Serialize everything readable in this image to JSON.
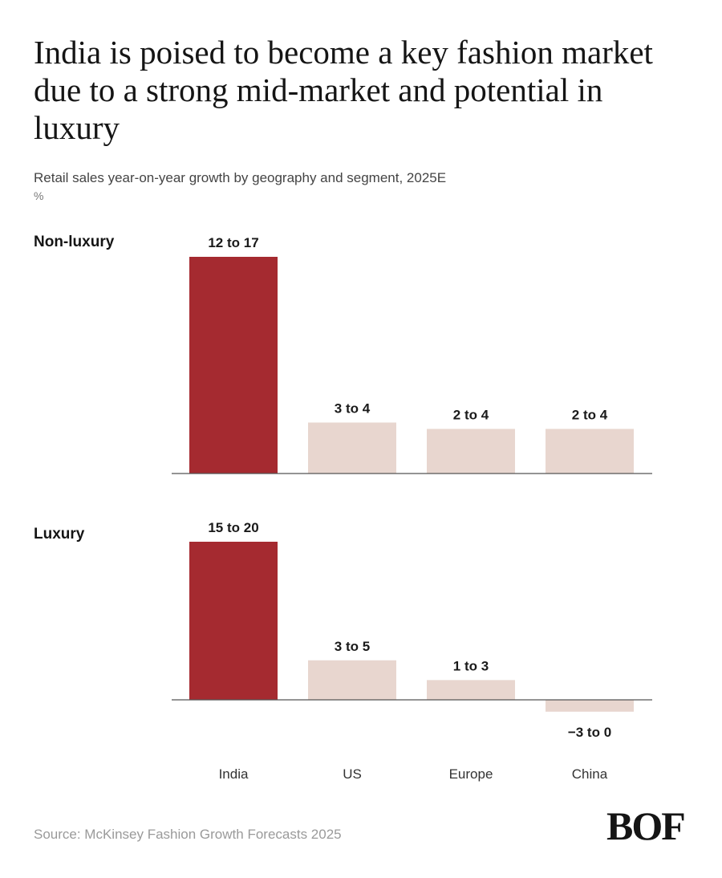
{
  "title": "India is poised to become a key fashion market due to a strong mid-market and potential in luxury",
  "subtitle": "Retail sales year-on-year growth by geography and segment, 2025E",
  "unit": "%",
  "source": "Source: McKinsey Fashion Growth Forecasts 2025",
  "logo": "BOF",
  "colors": {
    "highlight": "#a52a30",
    "muted": "#e8d6cf",
    "axis": "#555555"
  },
  "chart_data": [
    {
      "type": "bar",
      "title": "Non-luxury",
      "categories": [
        "India",
        "US",
        "Europe",
        "China"
      ],
      "ranges": [
        [
          12,
          17
        ],
        [
          3,
          4
        ],
        [
          2,
          4
        ],
        [
          2,
          4
        ]
      ],
      "value_labels": [
        "12 to 17",
        "3 to 4",
        "2 to 4",
        "2 to 4"
      ],
      "values": [
        17,
        4,
        3.5,
        3.5
      ],
      "highlight": [
        "India"
      ],
      "grid": false
    },
    {
      "type": "bar",
      "title": "Luxury",
      "categories": [
        "India",
        "US",
        "Europe",
        "China"
      ],
      "ranges": [
        [
          15,
          20
        ],
        [
          3,
          5
        ],
        [
          1,
          3
        ],
        [
          -3,
          0
        ]
      ],
      "value_labels": [
        "15 to 20",
        "3 to 5",
        "1 to 3",
        "−3 to 0"
      ],
      "values": [
        20,
        5,
        2.5,
        -1.5
      ],
      "highlight": [
        "India"
      ],
      "grid": false
    }
  ]
}
